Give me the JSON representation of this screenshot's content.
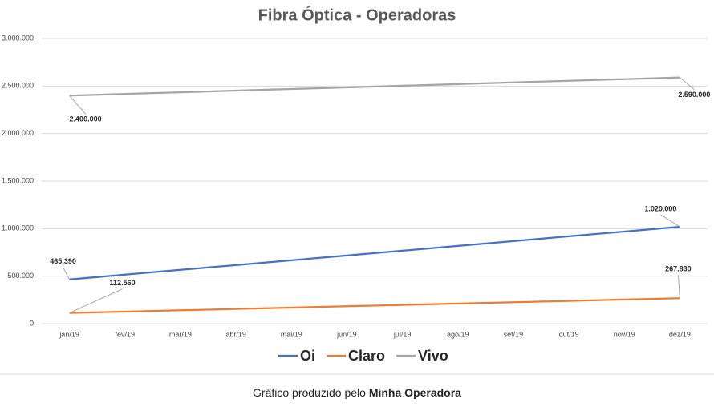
{
  "chart_data": {
    "type": "line",
    "title": "Fibra Óptica - Operadoras",
    "categories": [
      "jan/19",
      "fev/19",
      "mar/19",
      "abr/19",
      "mai/19",
      "jun/19",
      "jul/19",
      "ago/19",
      "set/19",
      "out/19",
      "nov/19",
      "dez/19"
    ],
    "series": [
      {
        "name": "Oi",
        "color": "#4472c4",
        "values": [
          465390,
          515809,
          566228,
          616647,
          667067,
          717486,
          767905,
          818324,
          868743,
          919162,
          969581,
          1020000
        ],
        "value_labels": [
          "465.390",
          null,
          null,
          null,
          null,
          null,
          null,
          null,
          null,
          null,
          null,
          "1.020.000"
        ]
      },
      {
        "name": "Claro",
        "color": "#ed7d31",
        "values": [
          112560,
          126675,
          140791,
          154906,
          169022,
          183137,
          197253,
          211368,
          225484,
          239599,
          253715,
          267830
        ],
        "value_labels": [
          "112.560",
          null,
          null,
          null,
          null,
          null,
          null,
          null,
          null,
          null,
          null,
          "267.830"
        ]
      },
      {
        "name": "Vivo",
        "color": "#a5a5a5",
        "values": [
          2400000,
          2417273,
          2434545,
          2451818,
          2469091,
          2486364,
          2503636,
          2520909,
          2538182,
          2555455,
          2572727,
          2590000
        ],
        "value_labels": [
          "2.400.000",
          null,
          null,
          null,
          null,
          null,
          null,
          null,
          null,
          null,
          null,
          "2.590.000"
        ]
      }
    ],
    "ylim": [
      0,
      3000000
    ],
    "yticks": [
      0,
      {
        "value": 500000,
        "label": "500.000"
      },
      {
        "value": 1000000,
        "label": "1.000.000"
      },
      {
        "value": 1500000,
        "label": "1.500.000"
      },
      {
        "value": 2000000,
        "label": "2.000.000"
      },
      {
        "value": 2500000,
        "label": "2.500.000"
      },
      {
        "value": 3000000,
        "label": "3.000.000"
      }
    ],
    "grid": true,
    "legend": "bottom"
  },
  "footer": {
    "text": "Gráfico produzido pelo",
    "brand": "Minha Operadora"
  }
}
